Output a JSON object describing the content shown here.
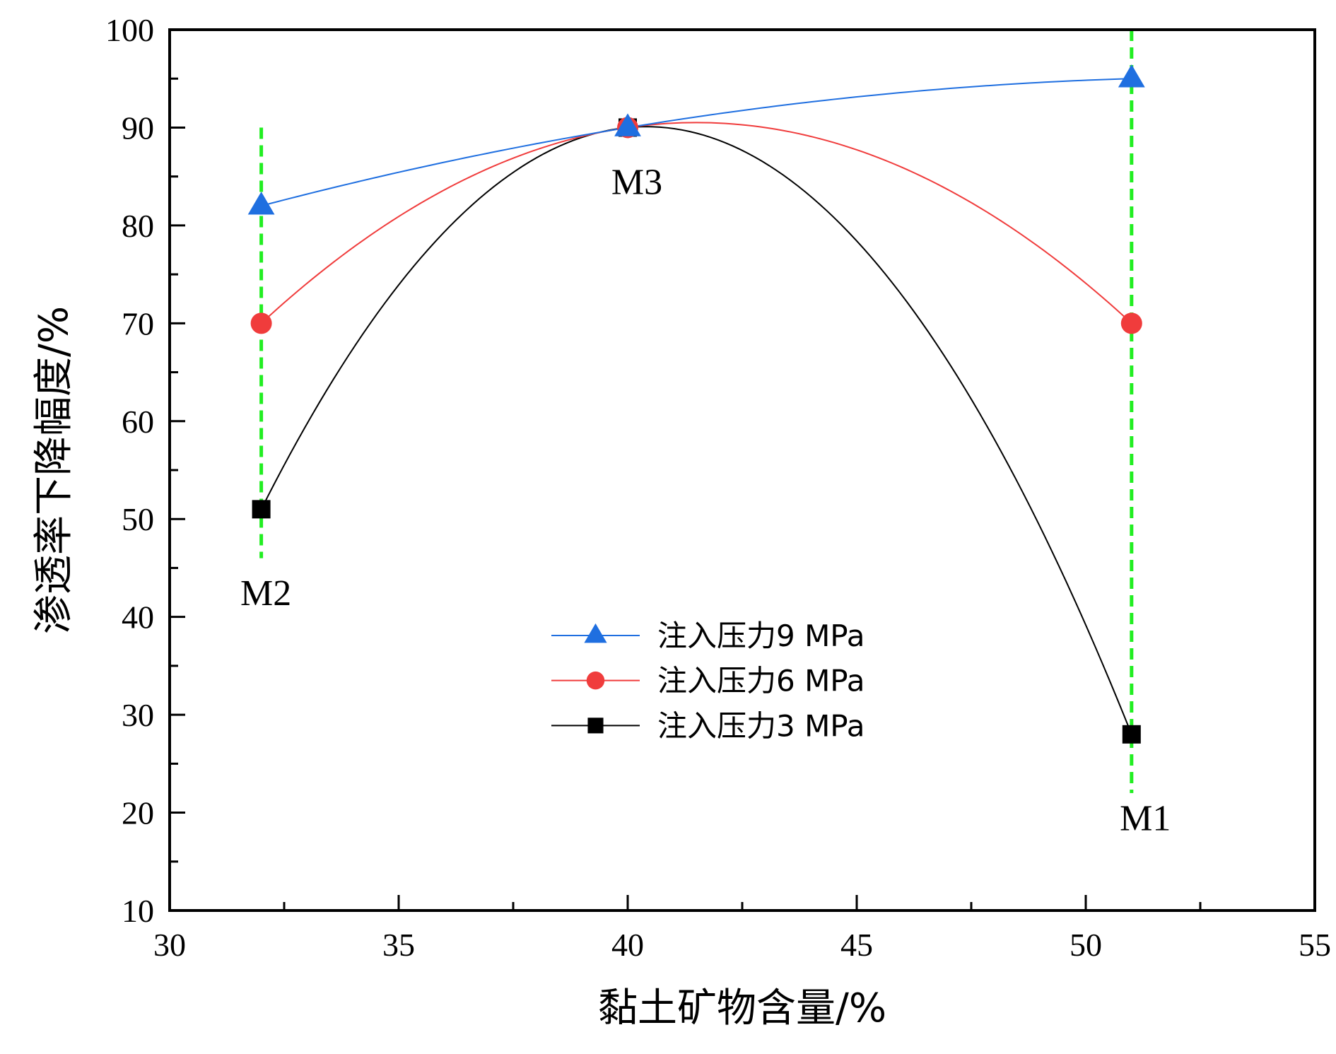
{
  "chart_data": {
    "type": "line",
    "xlabel": "黏土矿物含量/%",
    "ylabel": "渗透率下降幅度/%",
    "xlim": [
      30,
      55
    ],
    "ylim": [
      10,
      100
    ],
    "xticks": [
      30,
      35,
      40,
      45,
      50,
      55
    ],
    "yticks": [
      10,
      20,
      30,
      40,
      50,
      60,
      70,
      80,
      90,
      100
    ],
    "x": [
      32,
      40,
      51
    ],
    "series": [
      {
        "name": "注入压力3 MPa",
        "values": [
          51,
          90,
          28
        ],
        "color": "#000000",
        "marker": "square"
      },
      {
        "name": "注入压力6 MPa",
        "values": [
          70,
          90,
          70
        ],
        "color": "#f03c3c",
        "marker": "circle"
      },
      {
        "name": "注入压力9 MPa",
        "values": [
          82,
          90,
          95
        ],
        "color": "#1f6fe0",
        "marker": "triangle"
      }
    ],
    "reference_lines": [
      {
        "x": 32,
        "y_from": 46,
        "y_to": 90,
        "color": "#22ee22"
      },
      {
        "x": 51,
        "y_from": 22,
        "y_to": 100,
        "color": "#22ee22"
      }
    ],
    "annotations": [
      {
        "text": "M2",
        "x": 32.1,
        "y": 42.5
      },
      {
        "text": "M3",
        "x": 40.2,
        "y": 84.5
      },
      {
        "text": "M1",
        "x": 51.3,
        "y": 19.5
      }
    ],
    "legend_position": "bottom-center",
    "grid": false
  }
}
